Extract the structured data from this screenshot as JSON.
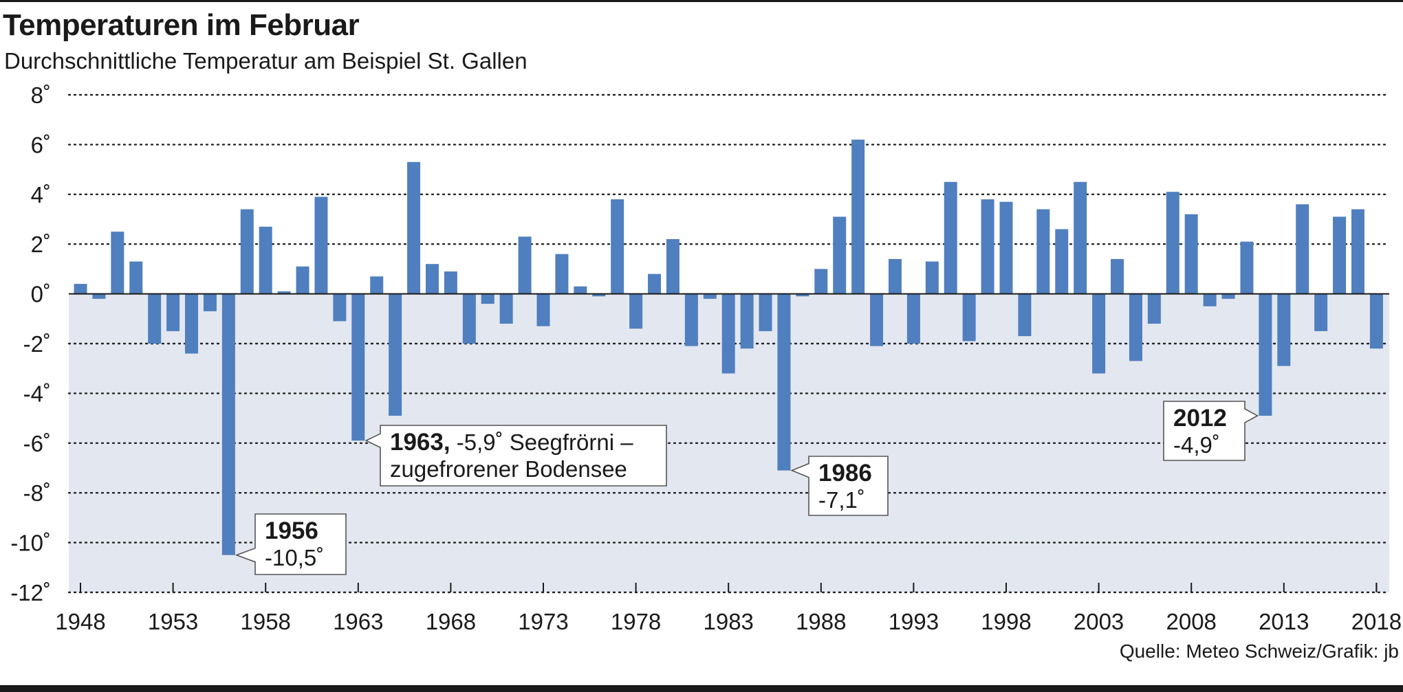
{
  "header": {
    "title": "Temperaturen im Februar",
    "subtitle": "Durchschnittliche Temperatur am Beispiel St. Gallen",
    "source": "Quelle: Meteo Schweiz/Grafik: jb"
  },
  "chart_data": {
    "type": "bar",
    "title": "Temperaturen im Februar",
    "subtitle": "Durchschnittliche Temperatur am Beispiel St. Gallen",
    "xlabel": "",
    "ylabel": "",
    "ylim": [
      -12,
      8
    ],
    "yticks": [
      8,
      6,
      4,
      2,
      0,
      -2,
      -4,
      -6,
      -8,
      -10,
      -12
    ],
    "ytick_labels": [
      "8˚",
      "6˚",
      "4˚",
      "2˚",
      "0˚",
      "-2˚",
      "-4˚",
      "-6˚",
      "-8˚",
      "-10˚",
      "-12˚"
    ],
    "xtick_labels": [
      "1948",
      "1953",
      "1958",
      "1963",
      "1968",
      "1973",
      "1978",
      "1983",
      "1988",
      "1993",
      "1998",
      "2003",
      "2008",
      "2013",
      "2018"
    ],
    "grid": true,
    "bar_color": "#4f7fbf",
    "negative_area_color": "#e3e7ef",
    "categories": [
      1948,
      1949,
      1950,
      1951,
      1952,
      1953,
      1954,
      1955,
      1956,
      1957,
      1958,
      1959,
      1960,
      1961,
      1962,
      1963,
      1964,
      1965,
      1966,
      1967,
      1968,
      1969,
      1970,
      1971,
      1972,
      1973,
      1974,
      1975,
      1976,
      1977,
      1978,
      1979,
      1980,
      1981,
      1982,
      1983,
      1984,
      1985,
      1986,
      1987,
      1988,
      1989,
      1990,
      1991,
      1992,
      1993,
      1994,
      1995,
      1996,
      1997,
      1998,
      1999,
      2000,
      2001,
      2002,
      2003,
      2004,
      2005,
      2006,
      2007,
      2008,
      2009,
      2010,
      2011,
      2012,
      2013,
      2014,
      2015,
      2016,
      2017,
      2018
    ],
    "values": [
      0.4,
      -0.2,
      2.5,
      1.3,
      -2.0,
      -1.5,
      -2.4,
      -0.7,
      -10.5,
      3.4,
      2.7,
      0.1,
      1.1,
      3.9,
      -1.1,
      -5.9,
      0.7,
      -4.9,
      5.3,
      1.2,
      0.9,
      -2.0,
      -0.4,
      -1.2,
      2.3,
      -1.3,
      1.6,
      0.3,
      -0.1,
      3.8,
      -1.4,
      0.8,
      2.2,
      -2.1,
      -0.2,
      -3.2,
      -2.2,
      -1.5,
      -7.1,
      -0.1,
      1.0,
      3.1,
      6.2,
      -2.1,
      1.4,
      -2.0,
      1.3,
      4.5,
      -1.9,
      3.8,
      3.7,
      -1.7,
      3.4,
      2.6,
      4.5,
      -3.2,
      1.4,
      -2.7,
      -1.2,
      4.1,
      3.2,
      -0.5,
      -0.2,
      2.1,
      -4.9,
      -2.9,
      3.6,
      -1.5,
      3.1,
      3.4,
      -2.2
    ],
    "annotations": [
      {
        "year": "1956",
        "text": "-10,5˚"
      },
      {
        "year": "1963,",
        "text": "-5,9˚ Seegfrörni –",
        "text2": "zugefrorener Bodensee"
      },
      {
        "year": "1986",
        "text": "-7,1˚"
      },
      {
        "year": "2012",
        "text": "-4,9˚"
      }
    ]
  }
}
